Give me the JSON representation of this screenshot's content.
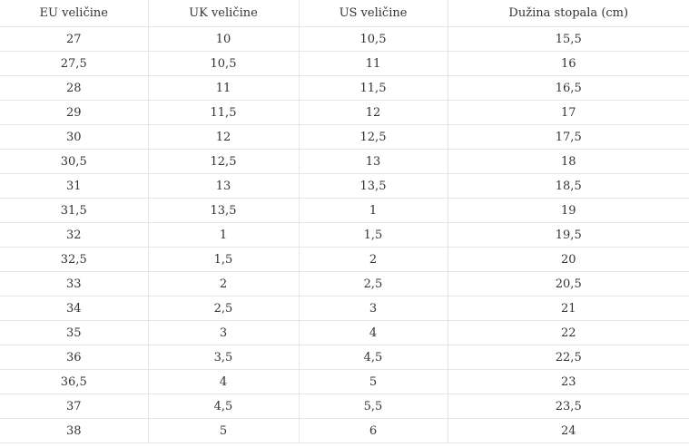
{
  "table": {
    "header": [
      "EU veličine",
      "UK veličine",
      "US veličine",
      "Dužina stopala (cm)"
    ],
    "rows": [
      [
        "27",
        "10",
        "10,5",
        "15,5"
      ],
      [
        "27,5",
        "10,5",
        "11",
        "16"
      ],
      [
        "28",
        "11",
        "11,5",
        "16,5"
      ],
      [
        "29",
        "11,5",
        "12",
        "17"
      ],
      [
        "30",
        "12",
        "12,5",
        "17,5"
      ],
      [
        "30,5",
        "12,5",
        "13",
        "18"
      ],
      [
        "31",
        "13",
        "13,5",
        "18,5"
      ],
      [
        "31,5",
        "13,5",
        "1",
        "19"
      ],
      [
        "32",
        "1",
        "1,5",
        "19,5"
      ],
      [
        "32,5",
        "1,5",
        "2",
        "20"
      ],
      [
        "33",
        "2",
        "2,5",
        "20,5"
      ],
      [
        "34",
        "2,5",
        "3",
        "21"
      ],
      [
        "35",
        "3",
        "4",
        "22"
      ],
      [
        "36",
        "3,5",
        "4,5",
        "22,5"
      ],
      [
        "36,5",
        "4",
        "5",
        "23"
      ],
      [
        "37",
        "4,5",
        "5,5",
        "23,5"
      ],
      [
        "38",
        "5",
        "6",
        "24"
      ]
    ]
  }
}
